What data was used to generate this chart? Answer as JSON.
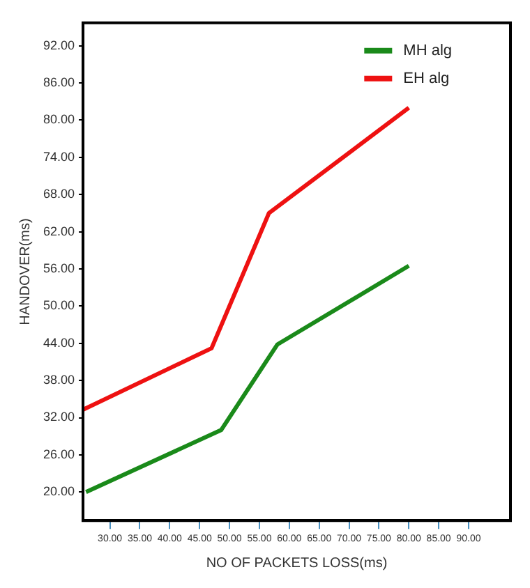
{
  "chart_data": {
    "type": "line",
    "ylabel": "HANDOVER(ms)",
    "xlabel": "NO OF PACKETS LOSS(ms)",
    "series": [
      {
        "name": "MH alg",
        "color": "#1a8a1a",
        "x": [
          26,
          48.6,
          58,
          80
        ],
        "values": [
          20,
          30,
          43.8,
          56.5
        ]
      },
      {
        "name": "EH alg",
        "color": "#ee1111",
        "x": [
          25.5,
          47,
          56.6,
          80
        ],
        "values": [
          33.3,
          43.2,
          65,
          82
        ]
      }
    ],
    "xlim": [
      25.5,
      97
    ],
    "xticks": [
      {
        "value": 30,
        "label": "30.00"
      },
      {
        "value": 35,
        "label": "35.00"
      },
      {
        "value": 40,
        "label": "40.00"
      },
      {
        "value": 45,
        "label": "45.00"
      },
      {
        "value": 50,
        "label": "50.00"
      },
      {
        "value": 55,
        "label": "55.00"
      },
      {
        "value": 60,
        "label": "60.00"
      },
      {
        "value": 65,
        "label": "65.00"
      },
      {
        "value": 70,
        "label": "70.00"
      },
      {
        "value": 75,
        "label": "75.00"
      },
      {
        "value": 80,
        "label": "80.00"
      },
      {
        "value": 85,
        "label": "85.00"
      },
      {
        "value": 90,
        "label": "90.00"
      }
    ],
    "ylim": [
      15.4,
      95.7
    ],
    "yticks": [
      {
        "value": 20,
        "label": "20.00"
      },
      {
        "value": 26,
        "label": "26.00"
      },
      {
        "value": 32,
        "label": "32.00"
      },
      {
        "value": 38,
        "label": "38.00"
      },
      {
        "value": 44,
        "label": "44.00"
      },
      {
        "value": 50,
        "label": "50.00"
      },
      {
        "value": 56,
        "label": "56.00"
      },
      {
        "value": 62,
        "label": "62.00"
      },
      {
        "value": 68,
        "label": "68.00"
      },
      {
        "value": 74,
        "label": "74.00"
      },
      {
        "value": 80,
        "label": "80.00"
      },
      {
        "value": 86,
        "label": "86.00"
      },
      {
        "value": 92,
        "label": "92.00"
      }
    ],
    "grid": false,
    "legend": "top right",
    "marker": "none",
    "line_style": "solid"
  }
}
